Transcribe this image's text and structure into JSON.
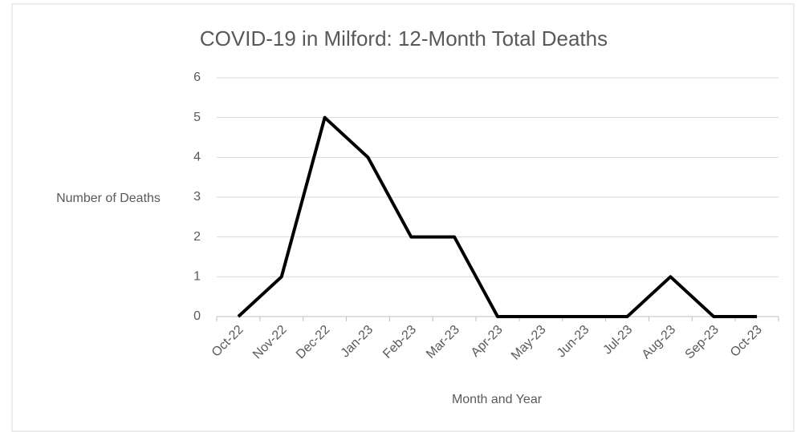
{
  "chart_data": {
    "type": "line",
    "title": "COVID-19 in Milford: 12-Month Total Deaths",
    "x_label": "Month and Year",
    "y_label": "Number of Deaths",
    "categories": [
      "Oct-22",
      "Nov-22",
      "Dec-22",
      "Jan-23",
      "Feb-23",
      "Mar-23",
      "Apr-23",
      "May-23",
      "Jun-23",
      "Jul-23",
      "Aug-23",
      "Sep-23",
      "Oct-23"
    ],
    "values": [
      0,
      1,
      5,
      4,
      2,
      2,
      0,
      0,
      0,
      0,
      1,
      0,
      0
    ],
    "color": "#000000",
    "ylim": [
      0,
      6
    ],
    "yticks": [
      0,
      1,
      2,
      3,
      4,
      5,
      6
    ],
    "grid": true
  }
}
